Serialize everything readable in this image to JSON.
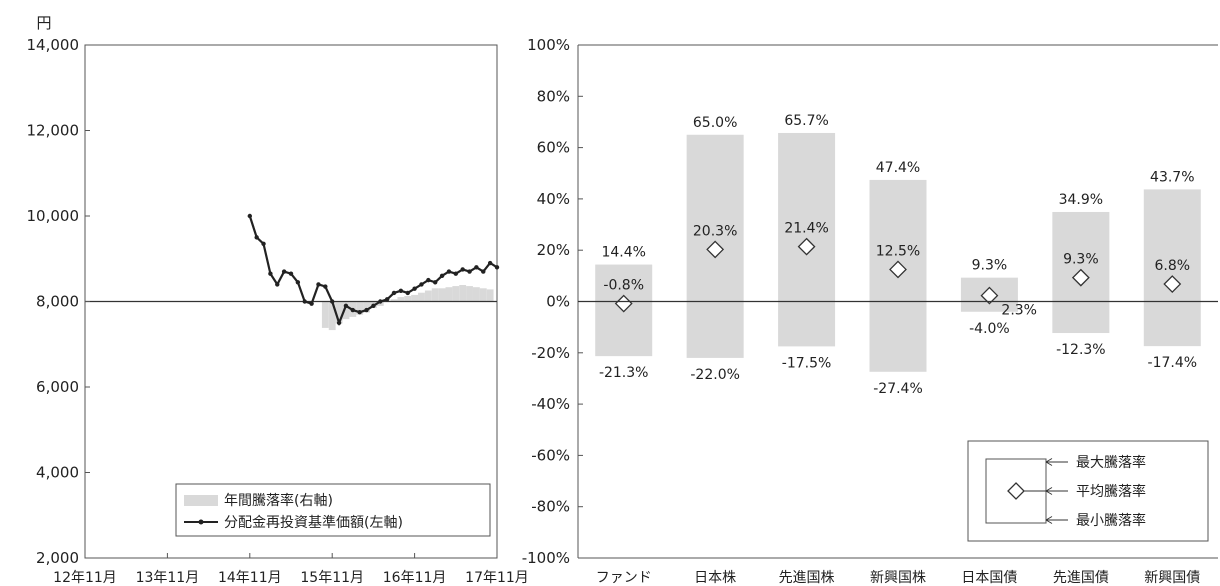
{
  "colors": {
    "bar": "#d9d9d9",
    "line": "#222222",
    "axis": "#555555",
    "refline": "#333333"
  },
  "chart_data": [
    {
      "type": "line",
      "unit_label": "円",
      "ylim": [
        2000,
        14000
      ],
      "yticks": [
        2000,
        4000,
        6000,
        8000,
        10000,
        12000,
        14000
      ],
      "ytick_labels": [
        "2,000",
        "4,000",
        "6,000",
        "8,000",
        "10,000",
        "12,000",
        "14,000"
      ],
      "xlim": [
        0,
        60
      ],
      "xticks": [
        0,
        12,
        24,
        36,
        48,
        60
      ],
      "xtick_labels": [
        "12年11月",
        "13年11月",
        "14年11月",
        "15年11月",
        "16年11月",
        "17年11月"
      ],
      "secondary_axis_note": "右軸 (%)",
      "bar_baseline_value": 0,
      "legend": {
        "bar_label": "年間騰落率(右軸)",
        "line_label": "分配金再投資基準価額(左軸)",
        "placement": "bottom-right"
      },
      "series": [
        {
          "name": "分配金再投資基準価額(左軸)",
          "kind": "line",
          "x": [
            24,
            25,
            26,
            27,
            28,
            29,
            30,
            31,
            32,
            33,
            34,
            35,
            36,
            37,
            38,
            39,
            40,
            41,
            42,
            43,
            44,
            45,
            46,
            47,
            48,
            49,
            50,
            51,
            52,
            53,
            54,
            55,
            56,
            57,
            58,
            59,
            60
          ],
          "values": [
            10000,
            9500,
            9350,
            8650,
            8400,
            8700,
            8650,
            8450,
            8000,
            7950,
            8400,
            8350,
            8000,
            7500,
            7900,
            7800,
            7750,
            7800,
            7900,
            8000,
            8050,
            8200,
            8250,
            8200,
            8300,
            8400,
            8500,
            8450,
            8600,
            8700,
            8650,
            8750,
            8700,
            8800,
            8700,
            8900,
            8800
          ]
        },
        {
          "name": "年間騰落率(右軸)",
          "kind": "bar",
          "x": [
            35,
            36,
            37,
            38,
            39,
            40,
            41,
            42,
            43,
            44,
            45,
            46,
            47,
            48,
            49,
            50,
            51,
            52,
            53,
            54,
            55,
            56,
            57,
            58,
            59
          ],
          "values": [
            -12.0,
            -13.0,
            -10.0,
            -8.0,
            -7.0,
            -6.0,
            -5.0,
            -3.0,
            -2.0,
            0.0,
            1.0,
            2.0,
            2.5,
            3.0,
            4.0,
            5.0,
            6.0,
            6.0,
            6.5,
            7.0,
            7.5,
            7.0,
            6.5,
            6.0,
            5.5
          ]
        }
      ]
    },
    {
      "type": "bar",
      "subtype": "range",
      "ylim": [
        -100,
        100
      ],
      "yticks": [
        -100,
        -80,
        -60,
        -40,
        -20,
        0,
        20,
        40,
        60,
        80,
        100
      ],
      "ytick_labels": [
        "-100%",
        "-80%",
        "-60%",
        "-40%",
        "-20%",
        "0%",
        "20%",
        "40%",
        "60%",
        "80%",
        "100%"
      ],
      "categories": [
        "ファンド",
        "日本株",
        "先進国株",
        "新興国株",
        "日本国債",
        "先進国債",
        "新興国債"
      ],
      "max_values": [
        14.4,
        65.0,
        65.7,
        47.4,
        9.3,
        34.9,
        43.7
      ],
      "avg_values": [
        -0.8,
        20.3,
        21.4,
        12.5,
        2.3,
        9.3,
        6.8
      ],
      "min_values": [
        -21.3,
        -22.0,
        -17.5,
        -27.4,
        -4.0,
        -12.3,
        -17.4
      ],
      "max_labels": [
        "14.4%",
        "65.0%",
        "65.7%",
        "47.4%",
        "9.3%",
        "34.9%",
        "43.7%"
      ],
      "avg_labels": [
        "-0.8%",
        "20.3%",
        "21.4%",
        "12.5%",
        "2.3%",
        "9.3%",
        "6.8%"
      ],
      "min_labels": [
        "-21.3%",
        "-22.0%",
        "-17.5%",
        "-27.4%",
        "-4.0%",
        "-12.3%",
        "-17.4%"
      ],
      "legend": {
        "max_label": "最大騰落率",
        "avg_label": "平均騰落率",
        "min_label": "最小騰落率",
        "placement": "bottom-right"
      }
    }
  ]
}
